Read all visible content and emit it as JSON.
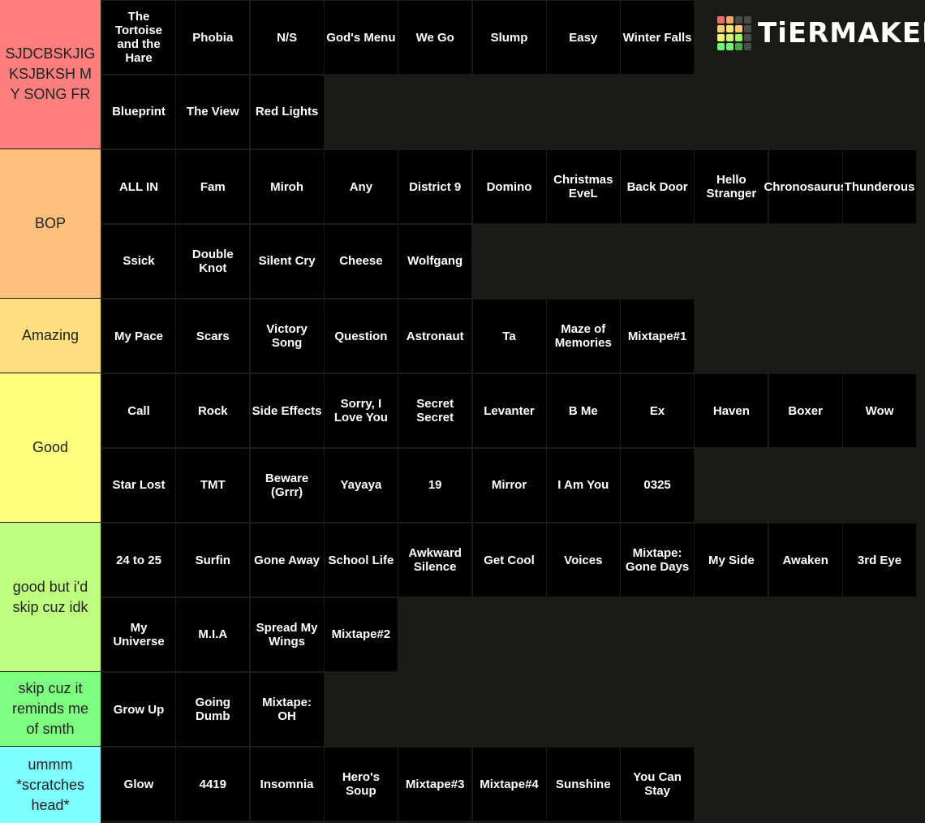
{
  "logo": {
    "text": "TiERMAKER",
    "grid_colors": [
      "#f56c6c",
      "#f5a26c",
      "#4a4a4a",
      "#4a4a4a",
      "#f5d06c",
      "#f5e66c",
      "#f5c96c",
      "#4a4a4a",
      "#f5f56c",
      "#d6f56c",
      "#9ff56c",
      "#4a4a4a",
      "#6cf57a",
      "#6cf56c",
      "#4aa84a",
      "#4a4a4a"
    ]
  },
  "tiers": [
    {
      "label": "SJDCBSKJIGKSJBKSH MY SONG FR",
      "color": "#ff7f7f",
      "items": [
        "The Tortoise and the Hare",
        "Phobia",
        "N/S",
        "God's Menu",
        "We Go",
        "Slump",
        "Easy",
        "Winter Falls",
        "Blueprint",
        "The View",
        "Red Lights"
      ]
    },
    {
      "label": "BOP",
      "color": "#ffbf7f",
      "items": [
        "ALL IN",
        "Fam",
        "Miroh",
        "Any",
        "District 9",
        "Domino",
        "Christmas EveL",
        "Back Door",
        "Hello Stranger",
        "Chronosaurus",
        "Thunderous",
        "Ssick",
        "Double Knot",
        "Silent Cry",
        "Cheese",
        "Wolfgang"
      ]
    },
    {
      "label": "Amazing",
      "color": "#ffdf7f",
      "items": [
        "My Pace",
        "Scars",
        "Victory Song",
        "Question",
        "Astronaut",
        "Ta",
        "Maze of Memories",
        "Mixtape#1"
      ]
    },
    {
      "label": "Good",
      "color": "#ffff7f",
      "items": [
        "Call",
        "Rock",
        "Side Effects",
        "Sorry, I Love You",
        "Secret Secret",
        "Levanter",
        "B Me",
        "Ex",
        "Haven",
        "Boxer",
        "Wow",
        "Star Lost",
        "TMT",
        "Beware (Grrr)",
        "Yayaya",
        "19",
        "Mirror",
        "I Am You",
        "0325"
      ]
    },
    {
      "label": "good but i'd skip cuz idk",
      "color": "#bfff7f",
      "items": [
        "24 to 25",
        "Surfin",
        "Gone Away",
        "School Life",
        "Awkward Silence",
        "Get Cool",
        "Voices",
        "Mixtape: Gone Days",
        "My Side",
        "Awaken",
        "3rd Eye",
        "My Universe",
        "M.I.A",
        "Spread My Wings",
        "Mixtape#2"
      ]
    },
    {
      "label": "skip cuz it reminds me of  smth",
      "color": "#7fff7f",
      "items": [
        "Grow Up",
        "Going Dumb",
        "Mixtape: OH"
      ]
    },
    {
      "label": "ummm *scratches head*",
      "color": "#7fffff",
      "items": [
        "Glow",
        "4419",
        "Insomnia",
        "Hero's Soup",
        "Mixtape#3",
        "Mixtape#4",
        "Sunshine",
        "You Can Stay"
      ]
    }
  ]
}
